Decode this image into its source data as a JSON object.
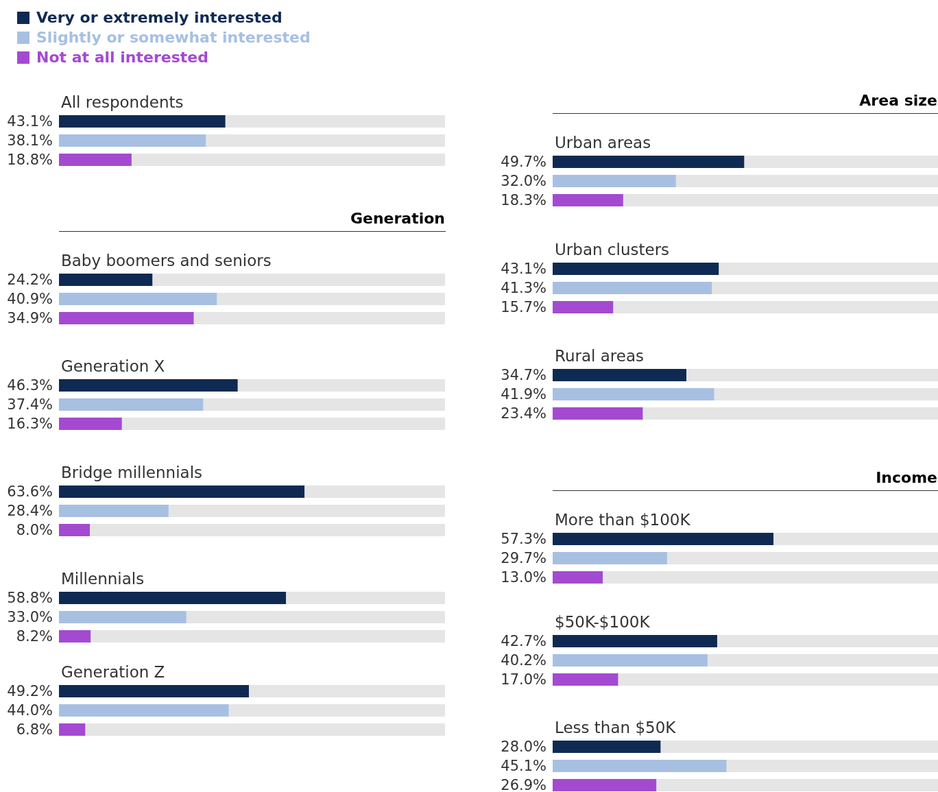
{
  "chart_data": [
    {
      "type": "bar",
      "orientation": "horizontal",
      "title": "All respondents",
      "annotations": [
        "Very or extremely interested",
        "Slightly or somewhat interested",
        "Not at all interested"
      ],
      "categories": [
        null,
        null,
        null
      ],
      "xlim": [
        0,
        100
      ],
      "tick_labels": false,
      "colors": [
        "#0f2a52",
        "#a7c0e2",
        "#a34ad1"
      ],
      "values": [
        43.1,
        38.1,
        18.8
      ],
      "value_labels": [
        "43.1%",
        "38.1%",
        "18.8%"
      ]
    },
    {
      "type": "bar",
      "orientation": "horizontal",
      "title": "Baby boomers and seniors",
      "subtitle": "Generation",
      "categories": [
        null,
        null,
        null
      ],
      "xlim": [
        0,
        100
      ],
      "tick_labels": false,
      "colors": [
        "#0f2a52",
        "#a7c0e2",
        "#a34ad1"
      ],
      "values": [
        24.2,
        40.9,
        34.9
      ],
      "value_labels": [
        "24.2%",
        "40.9%",
        "34.9%"
      ]
    },
    {
      "type": "bar",
      "orientation": "horizontal",
      "title": "Generation X",
      "categories": [
        null,
        null,
        null
      ],
      "xlim": [
        0,
        100
      ],
      "tick_labels": false,
      "colors": [
        "#0f2a52",
        "#a7c0e2",
        "#a34ad1"
      ],
      "values": [
        46.3,
        37.4,
        16.3
      ],
      "value_labels": [
        "46.3%",
        "37.4%",
        "16.3%"
      ]
    },
    {
      "type": "bar",
      "orientation": "horizontal",
      "title": "Bridge millennials",
      "categories": [
        null,
        null,
        null
      ],
      "xlim": [
        0,
        100
      ],
      "tick_labels": false,
      "colors": [
        "#0f2a52",
        "#a7c0e2",
        "#a34ad1"
      ],
      "values": [
        63.6,
        28.4,
        8.0
      ],
      "value_labels": [
        "63.6%",
        "28.4%",
        "8.0%"
      ]
    },
    {
      "type": "bar",
      "orientation": "horizontal",
      "title": "Millennials",
      "categories": [
        null,
        null,
        null
      ],
      "xlim": [
        0,
        100
      ],
      "tick_labels": false,
      "colors": [
        "#0f2a52",
        "#a7c0e2",
        "#a34ad1"
      ],
      "values": [
        58.8,
        33.0,
        8.2
      ],
      "value_labels": [
        "58.8%",
        "33.0%",
        "8.2%"
      ]
    },
    {
      "type": "bar",
      "orientation": "horizontal",
      "title": "Generation Z",
      "categories": [
        null,
        null,
        null
      ],
      "xlim": [
        0,
        100
      ],
      "tick_labels": false,
      "colors": [
        "#0f2a52",
        "#a7c0e2",
        "#a34ad1"
      ],
      "values": [
        49.2,
        44.0,
        6.8
      ],
      "value_labels": [
        "49.2%",
        "44.0%",
        "6.8%"
      ]
    },
    {
      "type": "bar",
      "orientation": "horizontal",
      "title": "Urban areas",
      "subtitle": "Area size",
      "categories": [
        null,
        null,
        null
      ],
      "xlim": [
        0,
        100
      ],
      "tick_labels": false,
      "colors": [
        "#0f2a52",
        "#a7c0e2",
        "#a34ad1"
      ],
      "values": [
        49.7,
        32.0,
        18.3
      ],
      "value_labels": [
        "49.7%",
        "32.0%",
        "18.3%"
      ]
    },
    {
      "type": "bar",
      "orientation": "horizontal",
      "title": "Urban clusters",
      "categories": [
        null,
        null,
        null
      ],
      "xlim": [
        0,
        100
      ],
      "tick_labels": false,
      "colors": [
        "#0f2a52",
        "#a7c0e2",
        "#a34ad1"
      ],
      "values": [
        43.1,
        41.3,
        15.7
      ],
      "value_labels": [
        "43.1%",
        "41.3%",
        "15.7%"
      ]
    },
    {
      "type": "bar",
      "orientation": "horizontal",
      "title": "Rural areas",
      "categories": [
        null,
        null,
        null
      ],
      "xlim": [
        0,
        100
      ],
      "tick_labels": false,
      "colors": [
        "#0f2a52",
        "#a7c0e2",
        "#a34ad1"
      ],
      "values": [
        34.7,
        41.9,
        23.4
      ],
      "value_labels": [
        "34.7%",
        "41.9%",
        "23.4%"
      ]
    },
    {
      "type": "bar",
      "orientation": "horizontal",
      "title": "More than $100K",
      "subtitle": "Income",
      "categories": [
        null,
        null,
        null
      ],
      "xlim": [
        0,
        100
      ],
      "tick_labels": false,
      "colors": [
        "#0f2a52",
        "#a7c0e2",
        "#a34ad1"
      ],
      "values": [
        57.3,
        29.7,
        13.0
      ],
      "value_labels": [
        "57.3%",
        "29.7%",
        "13.0%"
      ]
    },
    {
      "type": "bar",
      "orientation": "horizontal",
      "title": "$50K-$100K",
      "categories": [
        null,
        null,
        null
      ],
      "xlim": [
        0,
        100
      ],
      "tick_labels": false,
      "colors": [
        "#0f2a52",
        "#a7c0e2",
        "#a34ad1"
      ],
      "values": [
        42.7,
        40.2,
        17.0
      ],
      "value_labels": [
        "42.7%",
        "40.2%",
        "17.0%"
      ]
    },
    {
      "type": "bar",
      "orientation": "horizontal",
      "title": "Less than $50K",
      "categories": [
        null,
        null,
        null
      ],
      "xlim": [
        0,
        100
      ],
      "tick_labels": false,
      "colors": [
        "#0f2a52",
        "#a7c0e2",
        "#a34ad1"
      ],
      "values": [
        28.0,
        45.1,
        26.9
      ],
      "value_labels": [
        "28.0%",
        "45.1%",
        "26.9%"
      ]
    }
  ]
}
